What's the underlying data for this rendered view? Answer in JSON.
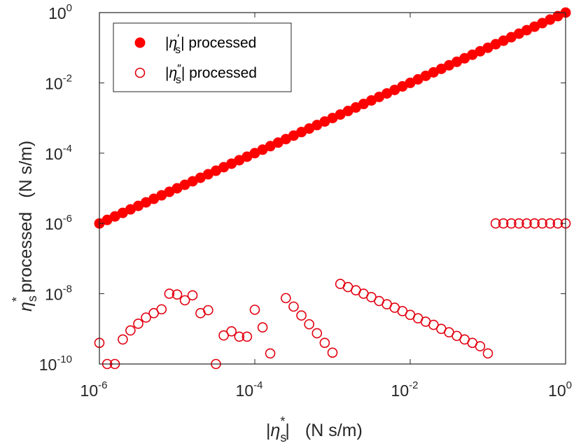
{
  "chart_data": {
    "type": "scatter",
    "x_scale": "log",
    "y_scale": "log",
    "xlim": [
      1e-06,
      1
    ],
    "ylim": [
      1e-10,
      1
    ],
    "x_ticks": [
      {
        "base": "10",
        "exp": "-6",
        "value": 1e-06
      },
      {
        "base": "10",
        "exp": "-4",
        "value": 0.0001
      },
      {
        "base": "10",
        "exp": "-2",
        "value": 0.01
      },
      {
        "base": "10",
        "exp": "0",
        "value": 1
      }
    ],
    "y_ticks": [
      {
        "base": "10",
        "exp": "-10",
        "value": 1e-10
      },
      {
        "base": "10",
        "exp": "-8",
        "value": 1e-08
      },
      {
        "base": "10",
        "exp": "-6",
        "value": 1e-06
      },
      {
        "base": "10",
        "exp": "-4",
        "value": 0.0001
      },
      {
        "base": "10",
        "exp": "-2",
        "value": 0.01
      },
      {
        "base": "10",
        "exp": "0",
        "value": 1
      }
    ],
    "xlabel": {
      "pre": "|",
      "symbol": "η",
      "sub": "s",
      "sup": "*",
      "post": "|",
      "units": "(N s/m)"
    },
    "ylabel": {
      "symbol": "η",
      "sub": "s",
      "sup": "*",
      "text": "processed",
      "units": "(N s/m)"
    },
    "legend": {
      "placement": "top-left",
      "entries": [
        {
          "pre": "|",
          "symbol": "η",
          "prime": "′",
          "sub": "s",
          "post": "| processed",
          "marker": "filled-circle"
        },
        {
          "pre": "|",
          "symbol": "η",
          "prime": "″",
          "sub": "s",
          "post": "| processed",
          "marker": "open-circle"
        }
      ]
    },
    "series": [
      {
        "name": "|η's| processed",
        "marker": "filled-circle",
        "color": "#ff0000",
        "x_range": [
          1e-06,
          1
        ],
        "points_per_decade": 10,
        "relation": "y = x"
      },
      {
        "name": "|η''s| processed",
        "marker": "open-circle",
        "color": "#e3000f",
        "points": [
          [
            1e-06,
            4e-10
          ],
          [
            1.26e-06,
            1e-10
          ],
          [
            1.58e-06,
            1e-10
          ],
          [
            2e-06,
            5e-10
          ],
          [
            2.51e-06,
            9e-10
          ],
          [
            3.16e-06,
            1.4e-09
          ],
          [
            3.98e-06,
            2.1e-09
          ],
          [
            5.01e-06,
            2.8e-09
          ],
          [
            6.31e-06,
            3.6e-09
          ],
          [
            7.94e-06,
            1e-08
          ],
          [
            1e-05,
            9.5e-09
          ],
          [
            1.26e-05,
            6.5e-09
          ],
          [
            1.58e-05,
            9e-09
          ],
          [
            2e-05,
            2.8e-09
          ],
          [
            2.51e-05,
            3.4e-09
          ],
          [
            3.16e-05,
            1e-10
          ],
          [
            3.98e-05,
            6.5e-10
          ],
          [
            5.01e-05,
            8.5e-10
          ],
          [
            6.31e-05,
            6e-10
          ],
          [
            7.94e-05,
            6e-10
          ],
          [
            0.0001,
            3.5e-09
          ],
          [
            0.000126,
            1.1e-09
          ],
          [
            0.000158,
            2e-10
          ],
          [
            0.000251,
            7.5e-09
          ],
          [
            0.000316,
            4.3e-09
          ],
          [
            0.000398,
            2.4e-09
          ],
          [
            0.000501,
            1.35e-09
          ],
          [
            0.000631,
            7.5e-10
          ],
          [
            0.000794,
            4e-10
          ],
          [
            0.001,
            2.1e-10
          ],
          [
            0.00126,
            1.9e-08
          ],
          [
            0.00158,
            1.55e-08
          ],
          [
            0.002,
            1.25e-08
          ],
          [
            0.00251,
            1e-08
          ],
          [
            0.00316,
            8e-09
          ],
          [
            0.00398,
            6.2e-09
          ],
          [
            0.00501,
            5e-09
          ],
          [
            0.00631,
            4e-09
          ],
          [
            0.00794,
            3.2e-09
          ],
          [
            0.01,
            2.5e-09
          ],
          [
            0.0126,
            2e-09
          ],
          [
            0.0158,
            1.6e-09
          ],
          [
            0.02,
            1.3e-09
          ],
          [
            0.0251,
            1e-09
          ],
          [
            0.0316,
            8e-10
          ],
          [
            0.0398,
            6.3e-10
          ],
          [
            0.0501,
            5e-10
          ],
          [
            0.0631,
            4e-10
          ],
          [
            0.0794,
            3.2e-10
          ],
          [
            0.1,
            2e-10
          ],
          [
            0.126,
            1e-06
          ],
          [
            0.158,
            1e-06
          ],
          [
            0.2,
            1e-06
          ],
          [
            0.251,
            1e-06
          ],
          [
            0.316,
            1e-06
          ],
          [
            0.398,
            1e-06
          ],
          [
            0.501,
            1e-06
          ],
          [
            0.631,
            1e-06
          ],
          [
            0.794,
            1e-06
          ],
          [
            1.0,
            1e-06
          ]
        ]
      }
    ]
  }
}
